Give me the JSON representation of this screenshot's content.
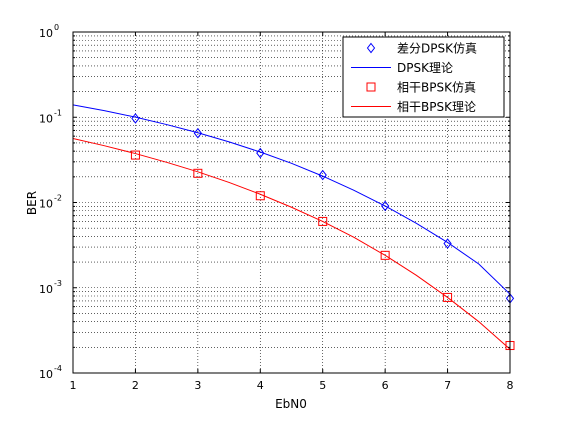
{
  "chart_data": {
    "type": "line",
    "title": "",
    "xlabel": "EbN0",
    "ylabel": "BER",
    "yscale": "log",
    "xlim": [
      1,
      8
    ],
    "ylim": [
      0.0001,
      1
    ],
    "grid": true,
    "legend_position": "top-right",
    "x_ticks": [
      "1",
      "2",
      "3",
      "4",
      "5",
      "6",
      "7",
      "8"
    ],
    "y_ticks": [
      {
        "base": "10",
        "exp": "-4"
      },
      {
        "base": "10",
        "exp": "-3"
      },
      {
        "base": "10",
        "exp": "-2"
      },
      {
        "base": "10",
        "exp": "-1"
      },
      {
        "base": "10",
        "exp": "0"
      }
    ],
    "series": [
      {
        "name": "差分DPSK仿真",
        "style": "markers",
        "marker": "diamond",
        "color": "#0000ff",
        "x": [
          2,
          3,
          4,
          5,
          6,
          7,
          8
        ],
        "y": [
          0.097,
          0.065,
          0.038,
          0.021,
          0.0091,
          0.0033,
          0.00075
        ]
      },
      {
        "name": "DPSK理论",
        "style": "line",
        "color": "#0000ff",
        "x": [
          1,
          1.5,
          2,
          2.5,
          3,
          3.5,
          4,
          4.5,
          5,
          5.5,
          6,
          6.5,
          7,
          7.5,
          8
        ],
        "y": [
          0.1397,
          0.1195,
          0.1003,
          0.0821,
          0.0658,
          0.0514,
          0.0391,
          0.0288,
          0.0204,
          0.0139,
          0.0091,
          0.0057,
          0.0034,
          0.0019,
          0.00084
        ]
      },
      {
        "name": "相干BPSK仿真",
        "style": "markers",
        "marker": "square",
        "color": "#ff0000",
        "x": [
          2,
          3,
          4,
          5,
          6,
          7,
          8
        ],
        "y": [
          0.036,
          0.022,
          0.012,
          0.006,
          0.0024,
          0.00077,
          0.00021
        ]
      },
      {
        "name": "相干BPSK理论",
        "style": "line",
        "color": "#ff0000",
        "x": [
          1,
          1.5,
          2,
          2.5,
          3,
          3.5,
          4,
          4.5,
          5,
          5.5,
          6,
          6.5,
          7,
          7.5,
          8
        ],
        "y": [
          0.0563,
          0.0464,
          0.0375,
          0.0296,
          0.0229,
          0.0172,
          0.0125,
          0.0088,
          0.006,
          0.0039,
          0.0024,
          0.0014,
          0.00077,
          0.0004,
          0.00019
        ]
      }
    ]
  }
}
